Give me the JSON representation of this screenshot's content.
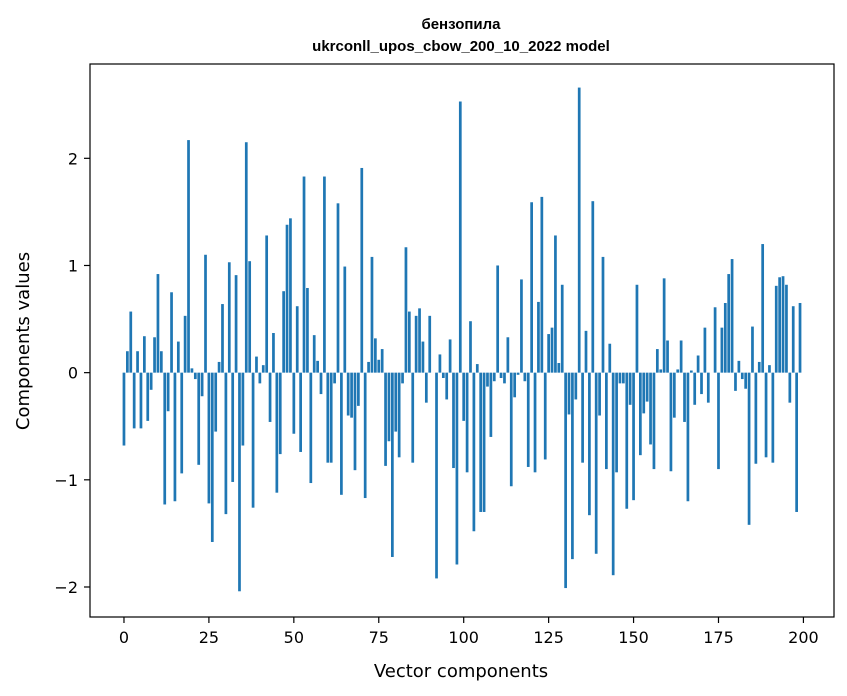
{
  "chart_data": {
    "type": "bar",
    "title": "бензопила",
    "subtitle": "ukrconll_upos_cbow_200_10_2022 model",
    "xlabel": "Vector components",
    "ylabel": "Components values",
    "xlim": [
      -10,
      209
    ],
    "ylim": [
      -2.28,
      2.88
    ],
    "xticks": [
      0,
      25,
      50,
      75,
      100,
      125,
      150,
      175,
      200
    ],
    "yticks": [
      -2,
      -1,
      0,
      1,
      2
    ],
    "ytick_labels": [
      "−2",
      "−1",
      "0",
      "1",
      "2"
    ],
    "bar_color": "#1f77b4",
    "grid": false,
    "values": [
      -0.68,
      0.2,
      0.57,
      -0.52,
      0.2,
      -0.52,
      0.34,
      -0.45,
      -0.16,
      0.33,
      0.92,
      0.2,
      -1.23,
      -0.36,
      0.75,
      -1.2,
      0.29,
      -0.94,
      0.53,
      2.17,
      0.04,
      -0.06,
      -0.86,
      -0.22,
      1.1,
      -1.22,
      -1.58,
      -0.55,
      0.1,
      0.64,
      -1.32,
      1.03,
      -1.02,
      0.91,
      -2.04,
      -0.68,
      2.15,
      1.04,
      -1.26,
      0.15,
      -0.1,
      0.07,
      1.28,
      -0.46,
      0.37,
      -1.12,
      -0.76,
      0.76,
      1.38,
      1.44,
      -0.57,
      0.62,
      -0.74,
      1.83,
      0.79,
      -1.03,
      0.35,
      0.11,
      -0.2,
      1.83,
      -0.84,
      -0.84,
      -0.1,
      1.58,
      -1.14,
      0.99,
      -0.4,
      -0.42,
      -0.91,
      -0.31,
      1.91,
      -1.17,
      0.1,
      1.08,
      0.32,
      0.12,
      0.22,
      -0.87,
      -0.64,
      -1.72,
      -0.55,
      -0.79,
      -0.1,
      1.17,
      0.57,
      -0.84,
      0.53,
      0.6,
      0.29,
      -0.28,
      0.53,
      0.0,
      -1.92,
      0.17,
      -0.05,
      -0.25,
      0.31,
      -0.89,
      -1.79,
      2.53,
      -0.45,
      -0.93,
      0.48,
      -1.48,
      0.08,
      -1.3,
      -1.3,
      -0.13,
      -0.6,
      -0.08,
      1.0,
      -0.05,
      -0.1,
      0.33,
      -1.06,
      -0.23,
      -0.02,
      0.87,
      -0.08,
      -0.88,
      1.59,
      -0.93,
      0.66,
      1.64,
      -0.81,
      0.36,
      0.42,
      1.28,
      0.09,
      0.82,
      -2.01,
      -0.39,
      -1.74,
      -0.25,
      2.66,
      -0.84,
      0.39,
      -1.33,
      1.6,
      -1.69,
      -0.4,
      1.08,
      -0.9,
      0.27,
      -1.89,
      -0.93,
      -0.1,
      -0.1,
      -1.27,
      -0.3,
      -1.19,
      0.82,
      -0.77,
      -0.38,
      -0.27,
      -0.67,
      -0.9,
      0.22,
      0.03,
      0.88,
      0.3,
      -0.92,
      -0.42,
      0.03,
      0.3,
      -0.46,
      -1.2,
      0.02,
      -0.3,
      0.16,
      -0.2,
      0.42,
      -0.28,
      0.0,
      0.61,
      -0.9,
      0.42,
      0.65,
      0.92,
      1.06,
      -0.17,
      0.11,
      -0.06,
      -0.15,
      -1.42,
      0.43,
      -0.85,
      0.1,
      1.2,
      -0.79,
      0.07,
      -0.84,
      0.81,
      0.89,
      0.9,
      0.82,
      -0.28,
      0.62,
      -1.3,
      0.65
    ]
  }
}
